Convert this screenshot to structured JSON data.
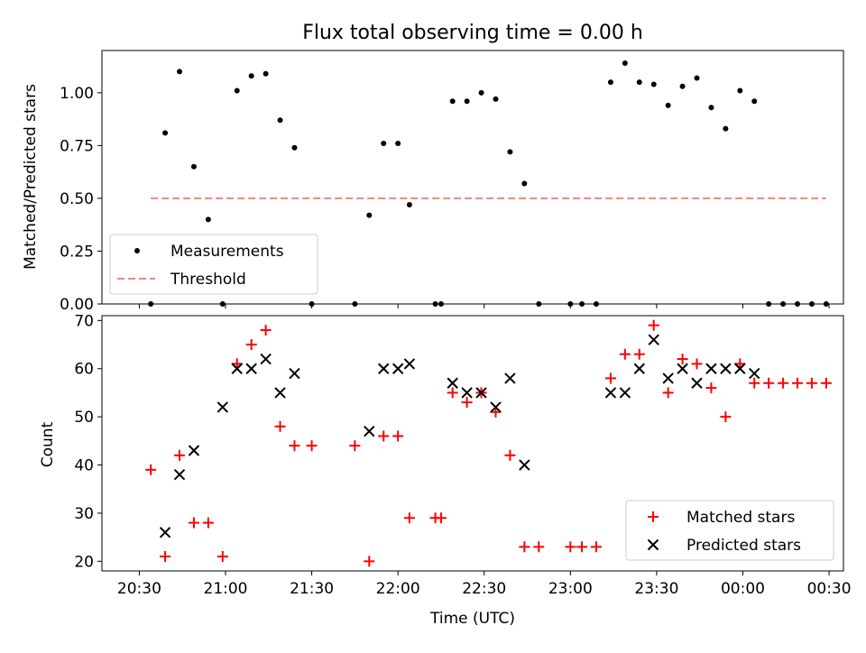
{
  "chart_data": [
    {
      "type": "scatter",
      "title": "Flux total observing time = 0.00 h",
      "xlabel": "",
      "ylabel": "Matched/Predicted stars",
      "ylim": [
        0,
        1.2
      ],
      "xlim": [
        "20:17",
        "00:35"
      ],
      "yticks": [
        0.0,
        0.25,
        0.5,
        0.75,
        1.0
      ],
      "ytick_labels": [
        "0.00",
        "0.25",
        "0.50",
        "0.75",
        "1.00"
      ],
      "legend_position": "lower-left",
      "legend": [
        {
          "label": "Measurements",
          "marker": "dot",
          "color": "#000000"
        },
        {
          "label": "Threshold",
          "marker": "dashed-line",
          "color": "#ff7f7f"
        }
      ],
      "series": [
        {
          "name": "Measurements",
          "color": "#000000",
          "points": [
            {
              "x": "20:34",
              "y": 0.0
            },
            {
              "x": "20:39",
              "y": 0.81
            },
            {
              "x": "20:44",
              "y": 1.1
            },
            {
              "x": "20:49",
              "y": 0.65
            },
            {
              "x": "20:54",
              "y": 0.4
            },
            {
              "x": "20:59",
              "y": 0.0
            },
            {
              "x": "21:04",
              "y": 1.01
            },
            {
              "x": "21:09",
              "y": 1.08
            },
            {
              "x": "21:14",
              "y": 1.09
            },
            {
              "x": "21:19",
              "y": 0.87
            },
            {
              "x": "21:24",
              "y": 0.74
            },
            {
              "x": "21:30",
              "y": 0.0
            },
            {
              "x": "21:45",
              "y": 0.0
            },
            {
              "x": "21:50",
              "y": 0.42
            },
            {
              "x": "21:55",
              "y": 0.76
            },
            {
              "x": "22:00",
              "y": 0.76
            },
            {
              "x": "22:04",
              "y": 0.47
            },
            {
              "x": "22:13",
              "y": 0.0
            },
            {
              "x": "22:15",
              "y": 0.0
            },
            {
              "x": "22:19",
              "y": 0.96
            },
            {
              "x": "22:24",
              "y": 0.96
            },
            {
              "x": "22:29",
              "y": 1.0
            },
            {
              "x": "22:34",
              "y": 0.97
            },
            {
              "x": "22:39",
              "y": 0.72
            },
            {
              "x": "22:44",
              "y": 0.57
            },
            {
              "x": "22:49",
              "y": 0.0
            },
            {
              "x": "23:00",
              "y": 0.0
            },
            {
              "x": "23:04",
              "y": 0.0
            },
            {
              "x": "23:09",
              "y": 0.0
            },
            {
              "x": "23:14",
              "y": 1.05
            },
            {
              "x": "23:19",
              "y": 1.14
            },
            {
              "x": "23:24",
              "y": 1.05
            },
            {
              "x": "23:29",
              "y": 1.04
            },
            {
              "x": "23:34",
              "y": 0.94
            },
            {
              "x": "23:39",
              "y": 1.03
            },
            {
              "x": "23:44",
              "y": 1.07
            },
            {
              "x": "23:49",
              "y": 0.93
            },
            {
              "x": "23:54",
              "y": 0.83
            },
            {
              "x": "23:59",
              "y": 1.01
            },
            {
              "x": "00:04",
              "y": 0.96
            },
            {
              "x": "00:09",
              "y": 0.0
            },
            {
              "x": "00:14",
              "y": 0.0
            },
            {
              "x": "00:19",
              "y": 0.0
            },
            {
              "x": "00:24",
              "y": 0.0
            },
            {
              "x": "00:29",
              "y": 0.0
            }
          ]
        },
        {
          "name": "Threshold",
          "color": "#ff7f7f",
          "style": "dashed",
          "points": [
            {
              "x": "20:34",
              "y": 0.5
            },
            {
              "x": "00:29",
              "y": 0.5
            }
          ]
        }
      ]
    },
    {
      "type": "scatter",
      "title": "",
      "xlabel": "Time (UTC)",
      "ylabel": "Count",
      "ylim": [
        18,
        71
      ],
      "xlim": [
        "20:17",
        "00:35"
      ],
      "yticks": [
        20,
        30,
        40,
        50,
        60,
        70
      ],
      "xticks": [
        "20:30",
        "21:00",
        "21:30",
        "22:00",
        "22:30",
        "23:00",
        "23:30",
        "00:00",
        "00:30"
      ],
      "legend_position": "lower-right",
      "legend": [
        {
          "label": "Matched stars",
          "marker": "plus",
          "color": "#ff0000"
        },
        {
          "label": "Predicted stars",
          "marker": "x",
          "color": "#000000"
        }
      ],
      "series": [
        {
          "name": "Matched stars",
          "color": "#ff0000",
          "points": [
            {
              "x": "20:34",
              "y": 39
            },
            {
              "x": "20:39",
              "y": 21
            },
            {
              "x": "20:44",
              "y": 42
            },
            {
              "x": "20:49",
              "y": 28
            },
            {
              "x": "20:54",
              "y": 28
            },
            {
              "x": "20:59",
              "y": 21
            },
            {
              "x": "21:04",
              "y": 61
            },
            {
              "x": "21:09",
              "y": 65
            },
            {
              "x": "21:14",
              "y": 68
            },
            {
              "x": "21:19",
              "y": 48
            },
            {
              "x": "21:24",
              "y": 44
            },
            {
              "x": "21:30",
              "y": 44
            },
            {
              "x": "21:45",
              "y": 44
            },
            {
              "x": "21:50",
              "y": 20
            },
            {
              "x": "21:55",
              "y": 46
            },
            {
              "x": "22:00",
              "y": 46
            },
            {
              "x": "22:04",
              "y": 29
            },
            {
              "x": "22:13",
              "y": 29
            },
            {
              "x": "22:15",
              "y": 29
            },
            {
              "x": "22:19",
              "y": 55
            },
            {
              "x": "22:24",
              "y": 53
            },
            {
              "x": "22:29",
              "y": 55
            },
            {
              "x": "22:34",
              "y": 51
            },
            {
              "x": "22:39",
              "y": 42
            },
            {
              "x": "22:44",
              "y": 23
            },
            {
              "x": "22:49",
              "y": 23
            },
            {
              "x": "23:00",
              "y": 23
            },
            {
              "x": "23:04",
              "y": 23
            },
            {
              "x": "23:09",
              "y": 23
            },
            {
              "x": "23:14",
              "y": 58
            },
            {
              "x": "23:19",
              "y": 63
            },
            {
              "x": "23:24",
              "y": 63
            },
            {
              "x": "23:29",
              "y": 69
            },
            {
              "x": "23:34",
              "y": 55
            },
            {
              "x": "23:39",
              "y": 62
            },
            {
              "x": "23:44",
              "y": 61
            },
            {
              "x": "23:49",
              "y": 56
            },
            {
              "x": "23:54",
              "y": 50
            },
            {
              "x": "23:59",
              "y": 61
            },
            {
              "x": "00:04",
              "y": 57
            },
            {
              "x": "00:09",
              "y": 57
            },
            {
              "x": "00:14",
              "y": 57
            },
            {
              "x": "00:19",
              "y": 57
            },
            {
              "x": "00:24",
              "y": 57
            },
            {
              "x": "00:29",
              "y": 57
            }
          ]
        },
        {
          "name": "Predicted stars",
          "color": "#000000",
          "points": [
            {
              "x": "20:39",
              "y": 26
            },
            {
              "x": "20:44",
              "y": 38
            },
            {
              "x": "20:49",
              "y": 43
            },
            {
              "x": "20:59",
              "y": 52
            },
            {
              "x": "21:04",
              "y": 60
            },
            {
              "x": "21:09",
              "y": 60
            },
            {
              "x": "21:14",
              "y": 62
            },
            {
              "x": "21:19",
              "y": 55
            },
            {
              "x": "21:24",
              "y": 59
            },
            {
              "x": "21:50",
              "y": 47
            },
            {
              "x": "21:55",
              "y": 60
            },
            {
              "x": "22:00",
              "y": 60
            },
            {
              "x": "22:04",
              "y": 61
            },
            {
              "x": "22:19",
              "y": 57
            },
            {
              "x": "22:24",
              "y": 55
            },
            {
              "x": "22:29",
              "y": 55
            },
            {
              "x": "22:34",
              "y": 52
            },
            {
              "x": "22:39",
              "y": 58
            },
            {
              "x": "22:44",
              "y": 40
            },
            {
              "x": "23:14",
              "y": 55
            },
            {
              "x": "23:19",
              "y": 55
            },
            {
              "x": "23:24",
              "y": 60
            },
            {
              "x": "23:29",
              "y": 66
            },
            {
              "x": "23:34",
              "y": 58
            },
            {
              "x": "23:39",
              "y": 60
            },
            {
              "x": "23:44",
              "y": 57
            },
            {
              "x": "23:49",
              "y": 60
            },
            {
              "x": "23:54",
              "y": 60
            },
            {
              "x": "23:59",
              "y": 60
            },
            {
              "x": "00:04",
              "y": 59
            }
          ]
        }
      ]
    }
  ]
}
